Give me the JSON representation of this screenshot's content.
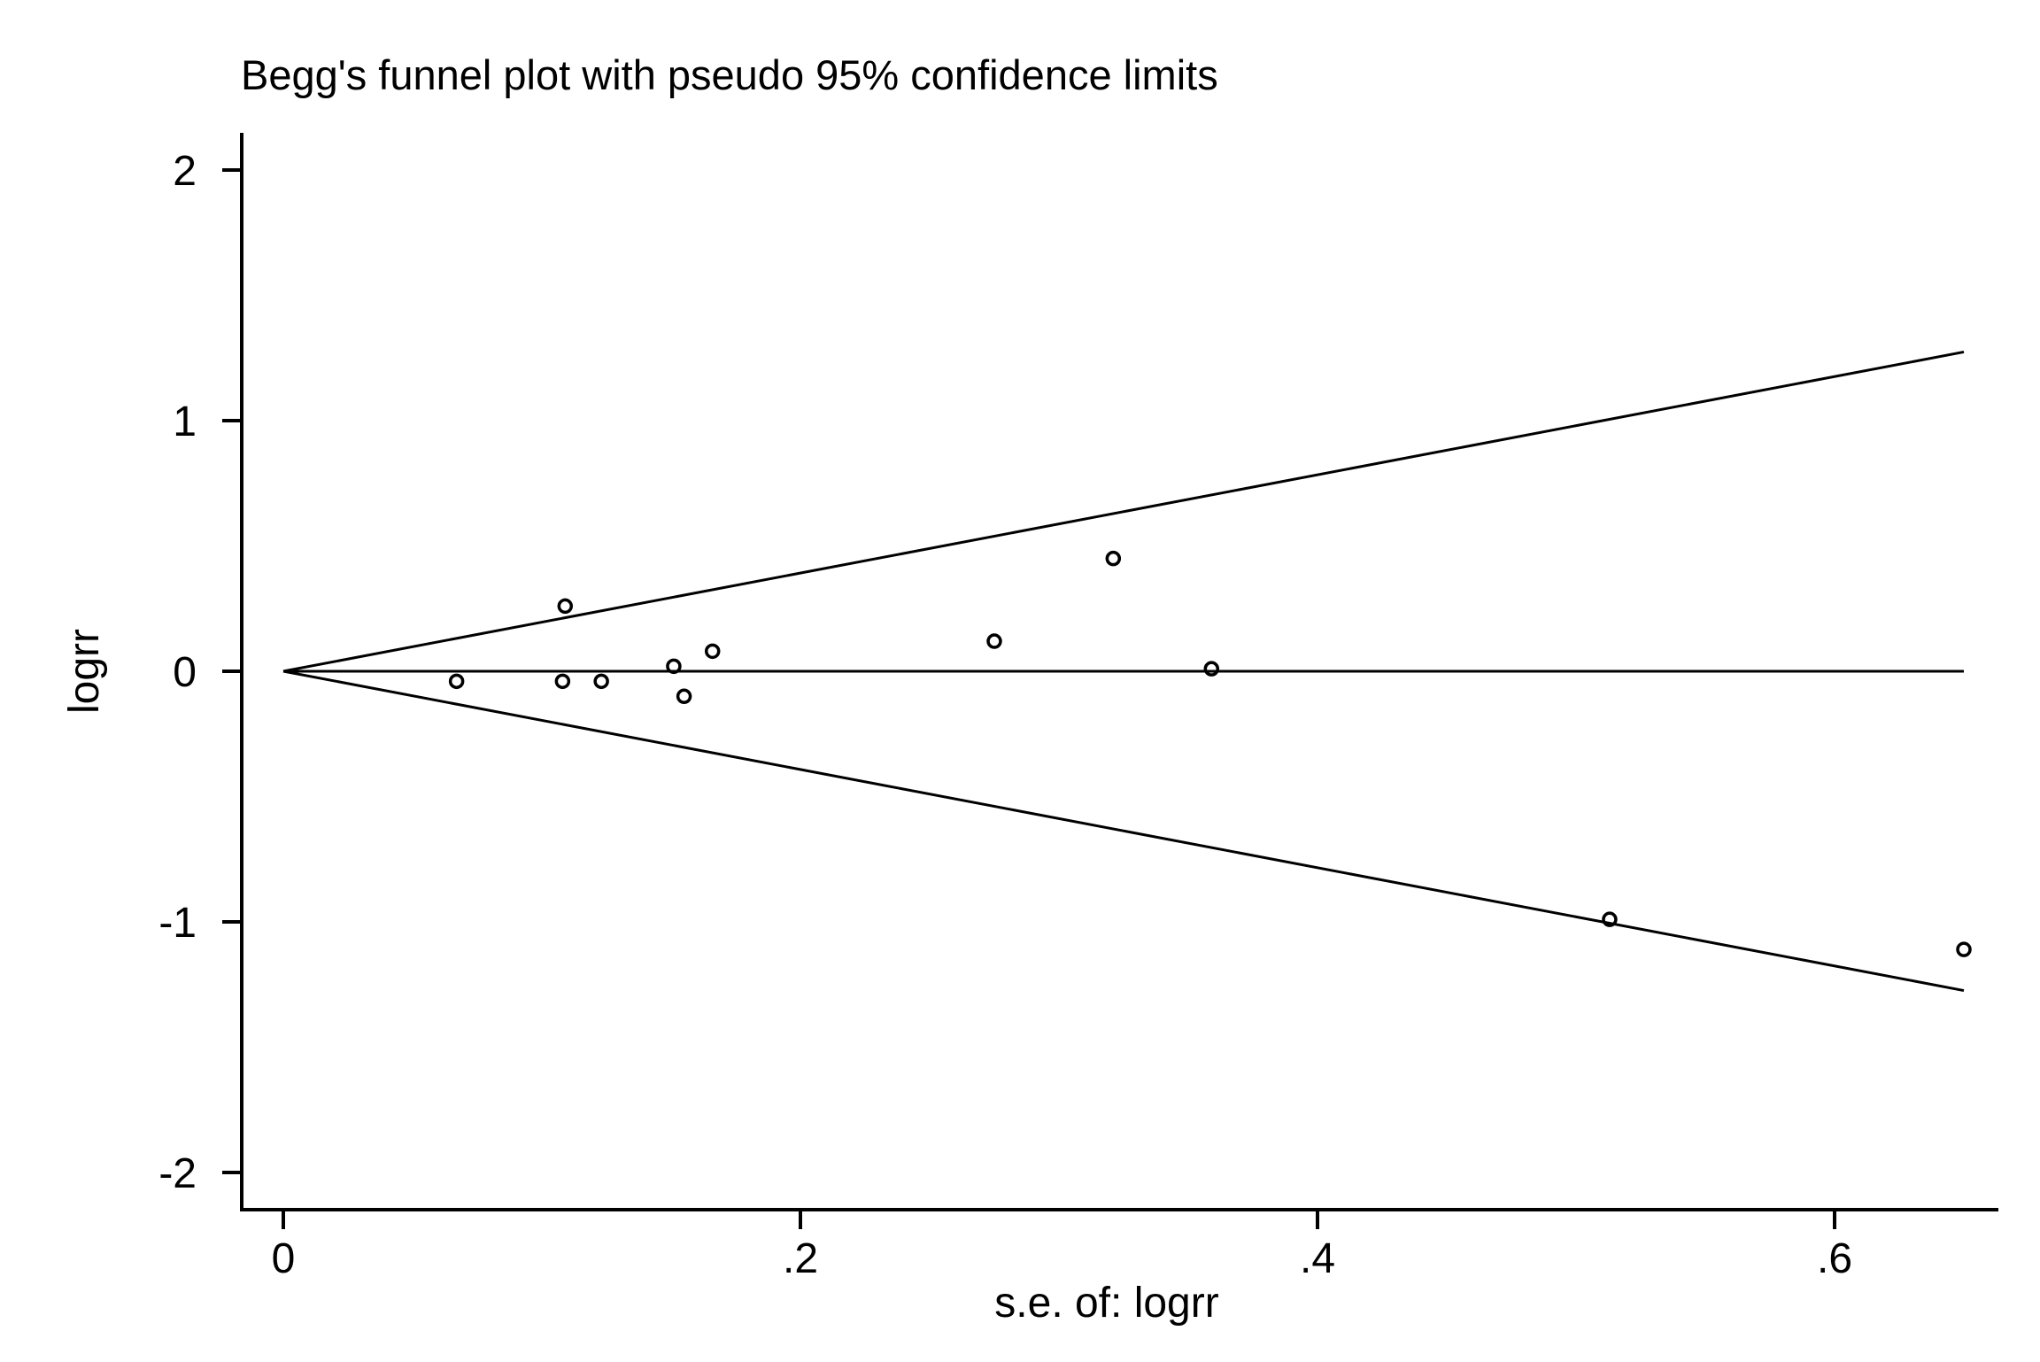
{
  "chart_data": {
    "type": "scatter",
    "title": "Begg's funnel plot with pseudo 95% confidence limits",
    "xlabel": "s.e. of: logrr",
    "ylabel": "logrr",
    "xlim": [
      -0.016,
      0.664
    ],
    "ylim": [
      -2.15,
      2.15
    ],
    "x_ticks": [
      0,
      0.2,
      0.4,
      0.6
    ],
    "x_tick_labels": [
      "0",
      ".2",
      ".4",
      ".6"
    ],
    "y_ticks": [
      2,
      1,
      0,
      -1,
      -2
    ],
    "y_tick_labels": [
      "2",
      "1",
      "0",
      "-1",
      "-2"
    ],
    "grid": false,
    "pooled_estimate": 0,
    "ci_multiplier": 1.96,
    "ci_se_range": [
      0,
      0.65
    ],
    "series": [
      {
        "values": [
          {
            "x": 0.067,
            "y": -0.04
          },
          {
            "x": 0.109,
            "y": 0.26
          },
          {
            "x": 0.108,
            "y": -0.04
          },
          {
            "x": 0.123,
            "y": -0.04
          },
          {
            "x": 0.151,
            "y": 0.02
          },
          {
            "x": 0.155,
            "y": -0.1
          },
          {
            "x": 0.166,
            "y": 0.08
          },
          {
            "x": 0.275,
            "y": 0.12
          },
          {
            "x": 0.321,
            "y": 0.45
          },
          {
            "x": 0.359,
            "y": 0.01
          },
          {
            "x": 0.513,
            "y": -0.99
          },
          {
            "x": 0.65,
            "y": -1.11
          }
        ]
      }
    ]
  }
}
